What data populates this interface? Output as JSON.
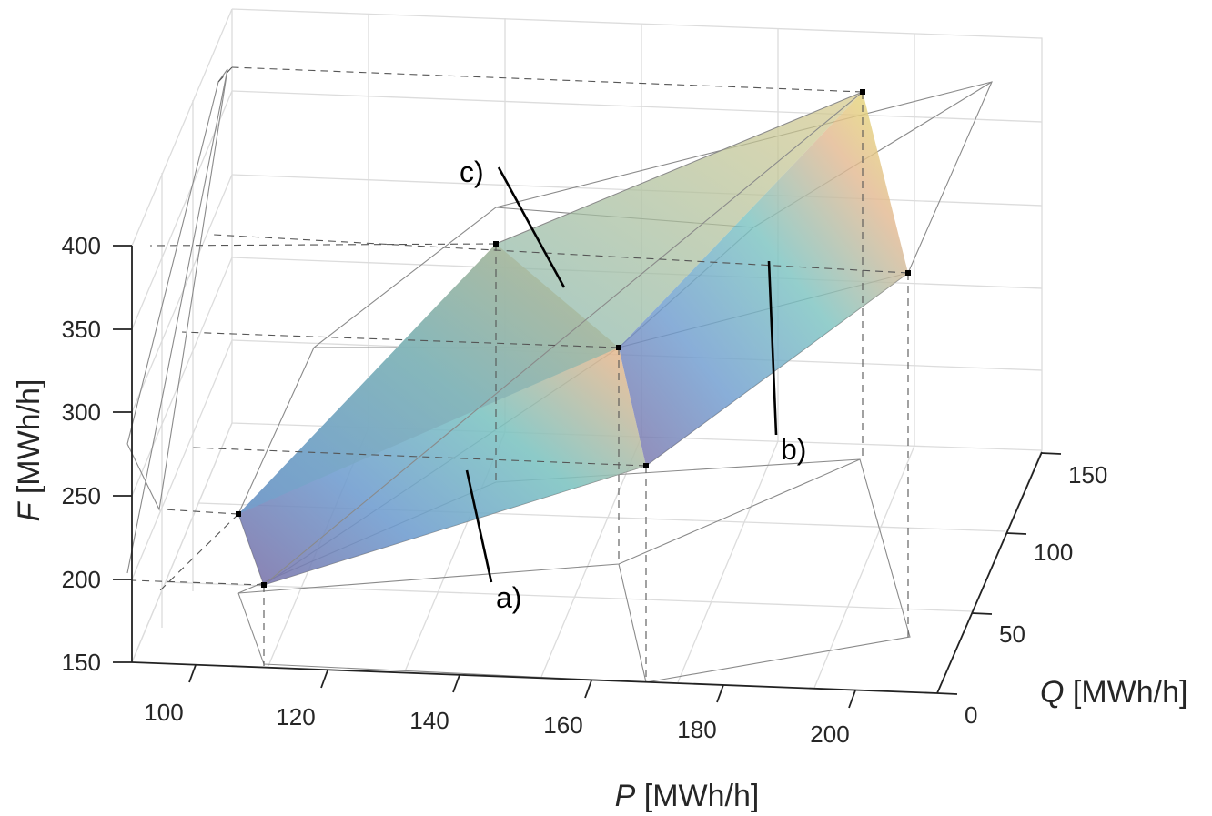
{
  "chart_data": {
    "type": "surface3d",
    "xlabel": {
      "var": "P",
      "unit": " [MWh/h]"
    },
    "ylabel": {
      "var": "Q",
      "unit": " [MWh/h]"
    },
    "zlabel": {
      "var": "F",
      "unit": " [MWh/h]"
    },
    "xlim": [
      90,
      215
    ],
    "ylim": [
      0,
      150
    ],
    "zlim": [
      150,
      400
    ],
    "x_ticks": [
      "100",
      "120",
      "140",
      "160",
      "180",
      "200"
    ],
    "y_ticks": [
      "0",
      "50",
      "100",
      "150"
    ],
    "z_ticks": [
      "150",
      "200",
      "250",
      "300",
      "350",
      "400"
    ],
    "annotations": [
      {
        "label": "a)"
      },
      {
        "label": "b)"
      },
      {
        "label": "c)"
      }
    ],
    "corner_points": [
      {
        "P": 112,
        "Q": 0,
        "F": 195
      },
      {
        "P": 170,
        "Q": 0,
        "F": 265
      },
      {
        "P": 210,
        "Q": 50,
        "F": 340
      },
      {
        "P": 210,
        "Q": 150,
        "F": 390
      },
      {
        "P": 152,
        "Q": 150,
        "F": 330
      },
      {
        "P": 95,
        "Q": 50,
        "F": 220
      }
    ],
    "colormap": [
      "#7b6fa6",
      "#6c9bd1",
      "#7ec4c4",
      "#e9b98e",
      "#e7e86c"
    ],
    "grid": true
  }
}
